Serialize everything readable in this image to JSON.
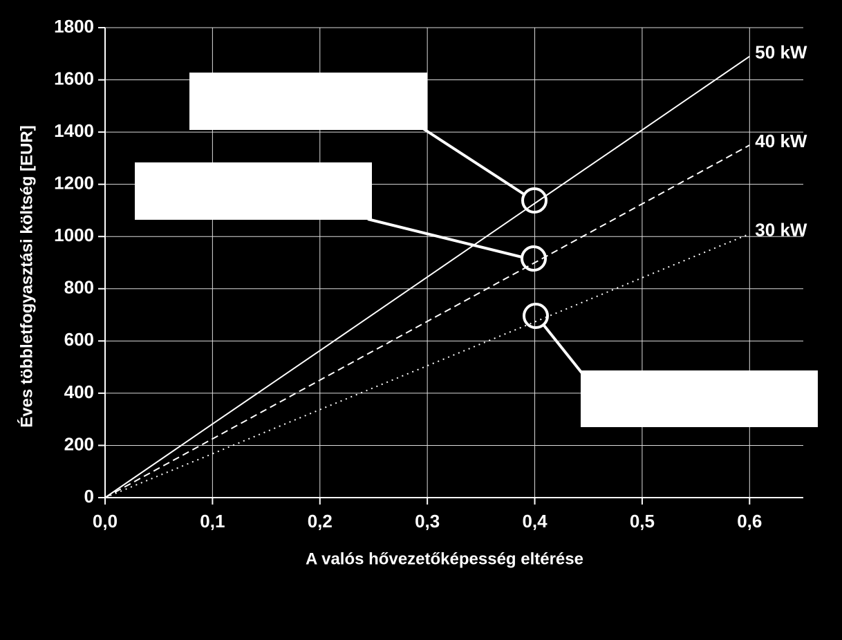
{
  "chart_data": {
    "type": "line",
    "x_label": "A valós hővezetőképesség eltérése",
    "y_label": "Éves többletfogyasztási költség [EUR]",
    "x": [
      0,
      0.1,
      0.2,
      0.3,
      0.4,
      0.5,
      0.6
    ],
    "series": [
      {
        "name": "50 kW",
        "color": "#ffffff",
        "line_style": "solid",
        "values": [
          0,
          282,
          563,
          845,
          1127,
          1408,
          1690
        ]
      },
      {
        "name": "40 kW",
        "color": "#ffffff",
        "line_style": "dashed",
        "values": [
          0,
          225,
          450,
          675,
          900,
          1125,
          1350
        ]
      },
      {
        "name": "30 kW",
        "color": "#ffffff",
        "line_style": "dotted",
        "values": [
          0,
          168,
          337,
          505,
          673,
          842,
          1010
        ]
      }
    ],
    "xlim": [
      0,
      0.65
    ],
    "xticks": [
      {
        "value": 0,
        "label": "0,0"
      },
      {
        "value": 0.1,
        "label": "0,1"
      },
      {
        "value": 0.2,
        "label": "0,2"
      },
      {
        "value": 0.3,
        "label": "0,3"
      },
      {
        "value": 0.4,
        "label": "0,4"
      },
      {
        "value": 0.5,
        "label": "0,5"
      },
      {
        "value": 0.6,
        "label": "0,6"
      }
    ],
    "ylim": [
      0,
      1800
    ],
    "yticks": [
      0,
      200,
      400,
      600,
      800,
      1000,
      1200,
      1400,
      1600,
      1800
    ],
    "grid": true
  }
}
